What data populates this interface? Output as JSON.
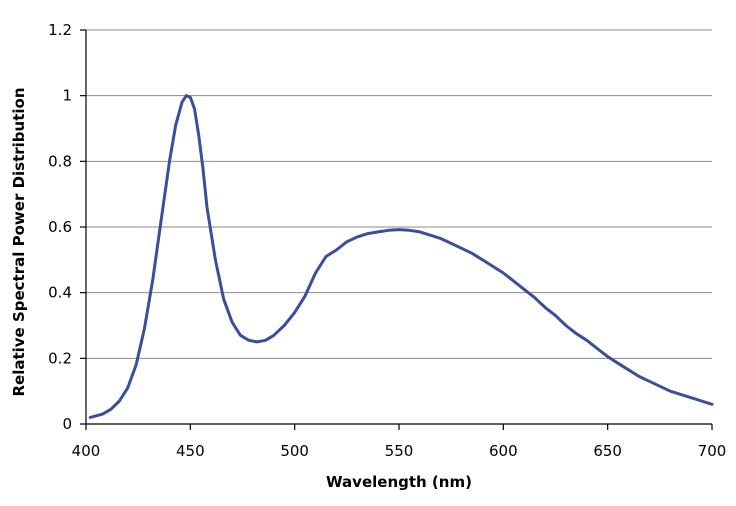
{
  "chart_data": {
    "type": "line",
    "title": "",
    "xlabel": "Wavelength (nm)",
    "ylabel": "Relative Spectral Power Distribution",
    "xlim": [
      400,
      700
    ],
    "ylim": [
      0,
      1.2
    ],
    "x_ticks": [
      400,
      450,
      500,
      550,
      600,
      650,
      700
    ],
    "y_ticks": [
      0,
      0.2,
      0.4,
      0.6,
      0.8,
      1,
      1.2
    ],
    "y_tick_labels": [
      "0",
      "0.2",
      "0.4",
      "0.6",
      "0.8",
      "1",
      "1.2"
    ],
    "grid": "horizontal",
    "legend": "none",
    "line_color": "#3a4f9b",
    "series": [
      {
        "x": [
          402,
          408,
          412,
          416,
          420,
          424,
          428,
          432,
          436,
          440,
          443,
          446,
          448,
          450,
          452,
          454,
          456,
          458,
          462,
          466,
          470,
          474,
          478,
          482,
          486,
          490,
          495,
          500,
          505,
          510,
          515,
          520,
          525,
          530,
          535,
          540,
          545,
          550,
          555,
          560,
          565,
          570,
          575,
          580,
          585,
          590,
          595,
          600,
          605,
          610,
          615,
          620,
          625,
          630,
          635,
          640,
          645,
          650,
          655,
          660,
          665,
          670,
          675,
          680,
          685,
          690,
          695,
          700
        ],
        "y": [
          0.02,
          0.03,
          0.045,
          0.07,
          0.11,
          0.18,
          0.29,
          0.44,
          0.62,
          0.8,
          0.91,
          0.98,
          1.0,
          0.995,
          0.96,
          0.88,
          0.78,
          0.66,
          0.5,
          0.38,
          0.31,
          0.27,
          0.255,
          0.25,
          0.255,
          0.27,
          0.3,
          0.34,
          0.39,
          0.46,
          0.51,
          0.53,
          0.555,
          0.57,
          0.58,
          0.585,
          0.59,
          0.592,
          0.59,
          0.585,
          0.575,
          0.565,
          0.55,
          0.535,
          0.52,
          0.5,
          0.48,
          0.46,
          0.435,
          0.41,
          0.385,
          0.355,
          0.33,
          0.3,
          0.275,
          0.255,
          0.23,
          0.205,
          0.185,
          0.165,
          0.145,
          0.13,
          0.115,
          0.1,
          0.09,
          0.08,
          0.07,
          0.06
        ]
      }
    ]
  }
}
